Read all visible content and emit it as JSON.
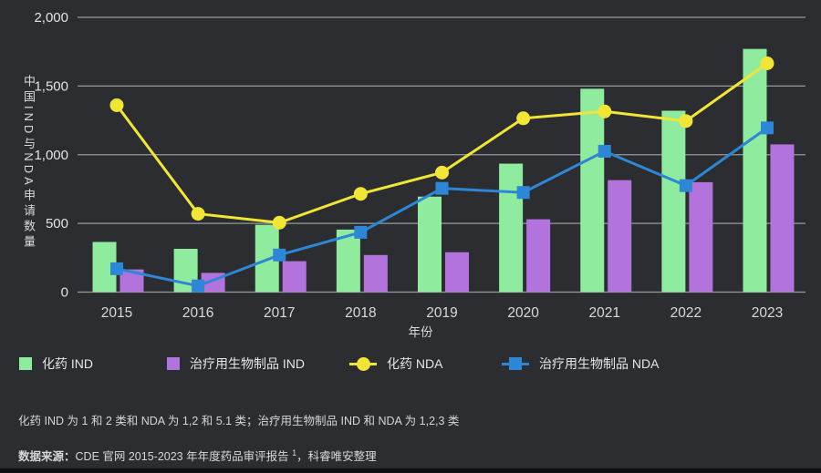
{
  "chart_data": {
    "type": "bar",
    "subtype": "grouped-bars-with-line-overlay",
    "categories": [
      "2015",
      "2016",
      "2017",
      "2018",
      "2019",
      "2020",
      "2021",
      "2022",
      "2023"
    ],
    "series": [
      {
        "key": "chem-ind",
        "name": "化药 IND",
        "type": "bar",
        "marker": "square",
        "color": "#8feb9e",
        "values": [
          365,
          315,
          490,
          455,
          695,
          935,
          1480,
          1320,
          1770
        ]
      },
      {
        "key": "bio-ind",
        "name": "治疗用生物制品 IND",
        "type": "bar",
        "marker": "square",
        "color": "#b273dc",
        "values": [
          165,
          140,
          225,
          270,
          290,
          530,
          815,
          800,
          1075
        ]
      },
      {
        "key": "chem-nda",
        "name": "化药 NDA",
        "type": "line",
        "marker": "circle",
        "color": "#f1e636",
        "values": [
          1360,
          570,
          505,
          715,
          870,
          1265,
          1315,
          1245,
          1665
        ]
      },
      {
        "key": "bio-nda",
        "name": "治疗用生物制品 NDA",
        "type": "line",
        "marker": "square",
        "color": "#2d86d6",
        "values": [
          170,
          45,
          270,
          435,
          755,
          725,
          1025,
          775,
          1195
        ]
      }
    ],
    "title": "",
    "xlabel": "年份",
    "ylabel": "中国IND与NDA申请数量",
    "ylim": [
      0,
      2000
    ],
    "yticks": [
      0,
      500,
      1000,
      1500,
      2000
    ],
    "grid": "horizontal",
    "legend_position": "bottom"
  },
  "colors": {
    "background": "#2b2d30",
    "gridline": "#97999b",
    "tick_text": "#e3e3e3",
    "year_text": "#d9d9d9"
  },
  "footnotes": {
    "note": "化药 IND 为 1 和 2 类和 NDA 为 1,2 和 5.1 类；治疗用生物制品 IND 和 NDA 为 1,2,3 类",
    "source_label": "数据来源：",
    "source_text": "CDE 官网 2015-2023 年年度药品审评报告",
    "source_sup": "1",
    "source_suffix": "，科睿唯安整理"
  }
}
